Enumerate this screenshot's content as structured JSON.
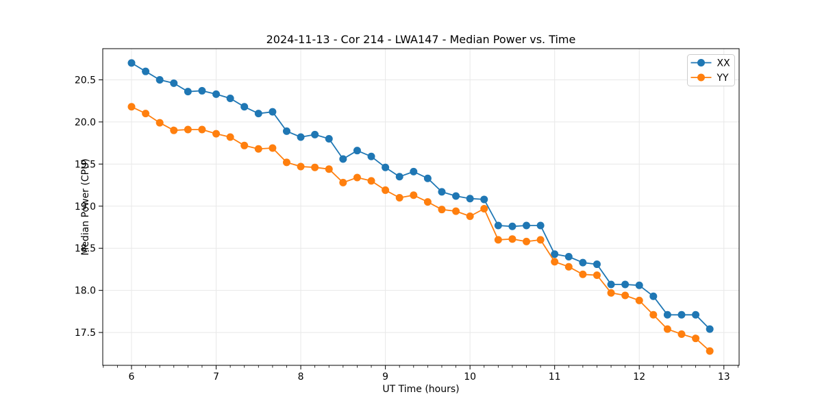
{
  "figure": {
    "background": "#ffffff",
    "frame_color": "#000000",
    "grid_color": "#e8e8e8",
    "tick_color": "#000000",
    "legend_border_color": "#cccccc"
  },
  "chart_data": {
    "type": "line",
    "title": "2024-11-13 - Cor 214 - LWA147 - Median Power vs. Time",
    "xlabel": "UT Time (hours)",
    "ylabel": "Median Power (CPU)",
    "xlim": [
      5.66,
      13.18
    ],
    "ylim": [
      17.11,
      20.87
    ],
    "xticks": [
      6,
      7,
      8,
      9,
      10,
      11,
      12,
      13
    ],
    "yticks": [
      17.5,
      18.0,
      18.5,
      19.0,
      19.5,
      20.0,
      20.5
    ],
    "minor_x_step": 0.166667,
    "grid": true,
    "legend_position": "upper right",
    "x": [
      6.0,
      6.1667,
      6.3333,
      6.5,
      6.6667,
      6.8333,
      7.0,
      7.1667,
      7.3333,
      7.5,
      7.6667,
      7.8333,
      8.0,
      8.1667,
      8.3333,
      8.5,
      8.6667,
      8.8333,
      9.0,
      9.1667,
      9.3333,
      9.5,
      9.6667,
      9.8333,
      10.0,
      10.1667,
      10.3333,
      10.5,
      10.6667,
      10.8333,
      11.0,
      11.1667,
      11.3333,
      11.5,
      11.6667,
      11.8333,
      12.0,
      12.1667,
      12.3333,
      12.5,
      12.6667,
      12.8333
    ],
    "series": [
      {
        "name": "XX",
        "color": "#1f77b4",
        "marker": "circle",
        "values": [
          20.7,
          20.6,
          20.5,
          20.46,
          20.36,
          20.37,
          20.33,
          20.28,
          20.18,
          20.1,
          20.12,
          19.89,
          19.82,
          19.85,
          19.8,
          19.56,
          19.66,
          19.59,
          19.46,
          19.35,
          19.41,
          19.33,
          19.17,
          19.12,
          19.09,
          19.08,
          18.77,
          18.76,
          18.77,
          18.77,
          18.43,
          18.4,
          18.33,
          18.31,
          18.07,
          18.07,
          18.06,
          17.93,
          17.71,
          17.71,
          17.71,
          17.54
        ]
      },
      {
        "name": "YY",
        "color": "#ff7f0e",
        "marker": "circle",
        "values": [
          20.18,
          20.1,
          19.99,
          19.9,
          19.91,
          19.91,
          19.86,
          19.82,
          19.72,
          19.68,
          19.69,
          19.52,
          19.47,
          19.46,
          19.44,
          19.28,
          19.34,
          19.3,
          19.19,
          19.1,
          19.13,
          19.05,
          18.96,
          18.94,
          18.88,
          18.97,
          18.6,
          18.61,
          18.58,
          18.6,
          18.34,
          18.28,
          18.19,
          18.18,
          17.97,
          17.94,
          17.88,
          17.71,
          17.54,
          17.48,
          17.43,
          17.28
        ]
      }
    ]
  }
}
